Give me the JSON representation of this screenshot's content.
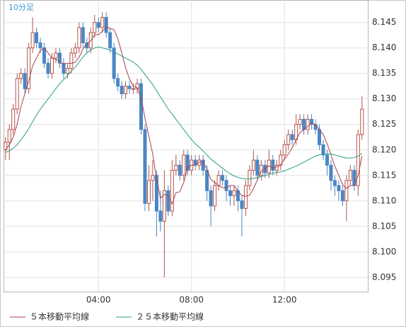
{
  "chart_data": {
    "type": "candlestick",
    "title": "10分足",
    "x": [
      0,
      10,
      20,
      30,
      40,
      50,
      60,
      70,
      80,
      90,
      100,
      110,
      120,
      130,
      140,
      150,
      160,
      170,
      180,
      190,
      200,
      210,
      220,
      230,
      240,
      250,
      260,
      270,
      280,
      290,
      300,
      310,
      320,
      330,
      340,
      350,
      360,
      370,
      380,
      390,
      400,
      410,
      420,
      430,
      440,
      450,
      460,
      470,
      480,
      490,
      500,
      510,
      520,
      530,
      540,
      550,
      560,
      570,
      580,
      590,
      600,
      610,
      620,
      630,
      640,
      650,
      660,
      670,
      680,
      690,
      700,
      710,
      720,
      730,
      740,
      750,
      760,
      770,
      780,
      790,
      800,
      810,
      820,
      830,
      840,
      850,
      860,
      870,
      880,
      890,
      900,
      910,
      920
    ],
    "open": [
      8.12,
      8.1215,
      8.124,
      8.128,
      8.134,
      8.135,
      8.132,
      8.14,
      8.143,
      8.141,
      8.14,
      8.137,
      8.135,
      8.138,
      8.139,
      8.137,
      8.135,
      8.136,
      8.139,
      8.14,
      8.144,
      8.141,
      8.14,
      8.143,
      8.145,
      8.144,
      8.146,
      8.143,
      8.14,
      8.134,
      8.1325,
      8.131,
      8.1325,
      8.132,
      8.132,
      8.133,
      8.124,
      8.1095,
      8.114,
      8.115,
      8.108,
      8.106,
      8.112,
      8.108,
      8.116,
      8.117,
      8.115,
      8.119,
      8.116,
      8.118,
      8.117,
      8.118,
      8.116,
      8.112,
      8.109,
      8.113,
      8.115,
      8.114,
      8.112,
      8.111,
      8.112,
      8.11,
      8.1085,
      8.113,
      8.116,
      8.118,
      8.115,
      8.117,
      8.1155,
      8.118,
      8.116,
      8.117,
      8.119,
      8.121,
      8.123,
      8.122,
      8.125,
      8.126,
      8.124,
      8.126,
      8.125,
      8.124,
      8.121,
      8.119,
      8.117,
      8.114,
      8.113,
      8.112,
      8.11,
      8.114,
      8.116,
      8.113,
      8.123
    ],
    "high": [
      8.1225,
      8.125,
      8.129,
      8.135,
      8.136,
      8.136,
      8.141,
      8.146,
      8.144,
      8.142,
      8.141,
      8.138,
      8.139,
      8.14,
      8.14,
      8.138,
      8.137,
      8.14,
      8.141,
      8.145,
      8.145,
      8.142,
      8.144,
      8.1465,
      8.146,
      8.147,
      8.147,
      8.144,
      8.141,
      8.135,
      8.1335,
      8.1335,
      8.1335,
      8.133,
      8.134,
      8.134,
      8.125,
      8.117,
      8.118,
      8.116,
      8.112,
      8.116,
      8.113,
      8.118,
      8.119,
      8.118,
      8.12,
      8.12,
      8.119,
      8.119,
      8.119,
      8.119,
      8.117,
      8.113,
      8.114,
      8.116,
      8.116,
      8.115,
      8.113,
      8.113,
      8.113,
      8.111,
      8.114,
      8.117,
      8.12,
      8.119,
      8.118,
      8.118,
      8.12,
      8.119,
      8.118,
      8.12,
      8.122,
      8.124,
      8.124,
      8.127,
      8.127,
      8.127,
      8.127,
      8.127,
      8.126,
      8.125,
      8.122,
      8.12,
      8.118,
      8.115,
      8.114,
      8.113,
      8.115,
      8.117,
      8.117,
      8.124,
      8.1305
    ],
    "low": [
      8.118,
      8.118,
      8.123,
      8.127,
      8.133,
      8.131,
      8.131,
      8.139,
      8.14,
      8.139,
      8.136,
      8.134,
      8.134,
      8.137,
      8.136,
      8.134,
      8.134,
      8.135,
      8.138,
      8.139,
      8.14,
      8.139,
      8.139,
      8.142,
      8.143,
      8.143,
      8.142,
      8.139,
      8.133,
      8.1315,
      8.13,
      8.13,
      8.131,
      8.131,
      8.131,
      8.123,
      8.108,
      8.108,
      8.11,
      8.103,
      8.104,
      8.095,
      8.107,
      8.107,
      8.115,
      8.114,
      8.114,
      8.115,
      8.115,
      8.116,
      8.116,
      8.115,
      8.11,
      8.105,
      8.108,
      8.112,
      8.113,
      8.11,
      8.109,
      8.109,
      8.108,
      8.103,
      8.107,
      8.112,
      8.115,
      8.114,
      8.114,
      8.1145,
      8.1145,
      8.115,
      8.115,
      8.116,
      8.118,
      8.12,
      8.121,
      8.121,
      8.124,
      8.123,
      8.123,
      8.124,
      8.123,
      8.12,
      8.118,
      8.115,
      8.112,
      8.111,
      8.11,
      8.109,
      8.106,
      8.113,
      8.112,
      8.111,
      8.122
    ],
    "close": [
      8.1215,
      8.124,
      8.128,
      8.134,
      8.135,
      8.132,
      8.14,
      8.143,
      8.141,
      8.14,
      8.137,
      8.135,
      8.138,
      8.139,
      8.137,
      8.135,
      8.136,
      8.139,
      8.14,
      8.144,
      8.141,
      8.14,
      8.143,
      8.145,
      8.144,
      8.146,
      8.143,
      8.14,
      8.134,
      8.1325,
      8.131,
      8.1325,
      8.132,
      8.132,
      8.133,
      8.124,
      8.1095,
      8.114,
      8.115,
      8.108,
      8.106,
      8.112,
      8.108,
      8.116,
      8.117,
      8.115,
      8.119,
      8.116,
      8.118,
      8.117,
      8.118,
      8.116,
      8.112,
      8.109,
      8.113,
      8.115,
      8.114,
      8.112,
      8.111,
      8.112,
      8.11,
      8.1085,
      8.113,
      8.116,
      8.118,
      8.115,
      8.117,
      8.1155,
      8.118,
      8.116,
      8.117,
      8.119,
      8.121,
      8.123,
      8.122,
      8.125,
      8.126,
      8.124,
      8.126,
      8.125,
      8.124,
      8.121,
      8.119,
      8.117,
      8.114,
      8.113,
      8.112,
      8.11,
      8.114,
      8.116,
      8.113,
      8.123,
      8.128
    ],
    "up_color": "#b5524a",
    "down_color": "#4a86c5",
    "series": [
      {
        "name": "５本移動平均線",
        "color": "#a8404a",
        "values": [
          8.12,
          8.121,
          8.1225,
          8.125,
          8.1285,
          8.131,
          8.1335,
          8.1365,
          8.138,
          8.1395,
          8.14,
          8.139,
          8.138,
          8.1378,
          8.1372,
          8.1368,
          8.137,
          8.137,
          8.1372,
          8.1382,
          8.1398,
          8.1408,
          8.1414,
          8.1426,
          8.1426,
          8.1432,
          8.1442,
          8.1438,
          8.1436,
          8.1418,
          8.1391,
          8.1361,
          8.1339,
          8.1325,
          8.1322,
          8.1302,
          8.1262,
          8.1227,
          8.1192,
          8.1143,
          8.1105,
          8.1113,
          8.111,
          8.1094,
          8.1116,
          8.1118,
          8.1136,
          8.1166,
          8.117,
          8.117,
          8.1176,
          8.1176,
          8.1162,
          8.1142,
          8.1136,
          8.113,
          8.1126,
          8.1126,
          8.113,
          8.113,
          8.1118,
          8.1111,
          8.1109,
          8.1111,
          8.1124,
          8.1141,
          8.1158,
          8.1163,
          8.1169,
          8.1164,
          8.1167,
          8.1171,
          8.1182,
          8.1192,
          8.1204,
          8.122,
          8.1234,
          8.124,
          8.1246,
          8.1252,
          8.125,
          8.124,
          8.123,
          8.1212,
          8.119,
          8.1168,
          8.115,
          8.1132,
          8.1124,
          8.113,
          8.113,
          8.115,
          8.1188
        ]
      },
      {
        "name": "２５本移動平均線",
        "color": "#2a9d80",
        "values": [
          8.1195,
          8.1198,
          8.1203,
          8.121,
          8.122,
          8.123,
          8.1242,
          8.1255,
          8.1268,
          8.128,
          8.129,
          8.13,
          8.131,
          8.132,
          8.133,
          8.1338,
          8.1346,
          8.1354,
          8.1362,
          8.1372,
          8.1382,
          8.139,
          8.1396,
          8.14,
          8.1402,
          8.14,
          8.1398,
          8.1396,
          8.1392,
          8.1388,
          8.1384,
          8.138,
          8.1376,
          8.1372,
          8.1366,
          8.1358,
          8.1348,
          8.1338,
          8.1328,
          8.1316,
          8.1304,
          8.1292,
          8.128,
          8.127,
          8.126,
          8.125,
          8.124,
          8.123,
          8.122,
          8.1212,
          8.1205,
          8.1198,
          8.119,
          8.1182,
          8.1176,
          8.117,
          8.1164,
          8.1158,
          8.1153,
          8.1149,
          8.1146,
          8.1144,
          8.1143,
          8.1143,
          8.1144,
          8.1146,
          8.1148,
          8.115,
          8.1152,
          8.1154,
          8.1156,
          8.1157,
          8.1159,
          8.1162,
          8.1165,
          8.1168,
          8.1172,
          8.1176,
          8.118,
          8.1184,
          8.1188,
          8.119,
          8.1192,
          8.1192,
          8.1192,
          8.119,
          8.1188,
          8.1186,
          8.1184,
          8.1184,
          8.1185,
          8.1188,
          8.1193
        ]
      }
    ],
    "xlim": [
      -5,
      935
    ],
    "xticks": [
      {
        "value": 240,
        "label": "04:00"
      },
      {
        "value": 480,
        "label": "08:00"
      },
      {
        "value": 720,
        "label": "12:00"
      }
    ],
    "ylim": [
      8.0922,
      8.1494
    ],
    "yticks": [
      8.095,
      {
        "value": 8.1,
        "label": "8.100"
      },
      8.105,
      {
        "value": 8.11,
        "label": "8.110"
      },
      8.115,
      {
        "value": 8.12,
        "label": "8.120"
      },
      8.125,
      {
        "value": 8.13,
        "label": "8.130"
      },
      8.135,
      {
        "value": 8.14,
        "label": "8.140"
      },
      8.145
    ],
    "grid": true
  }
}
